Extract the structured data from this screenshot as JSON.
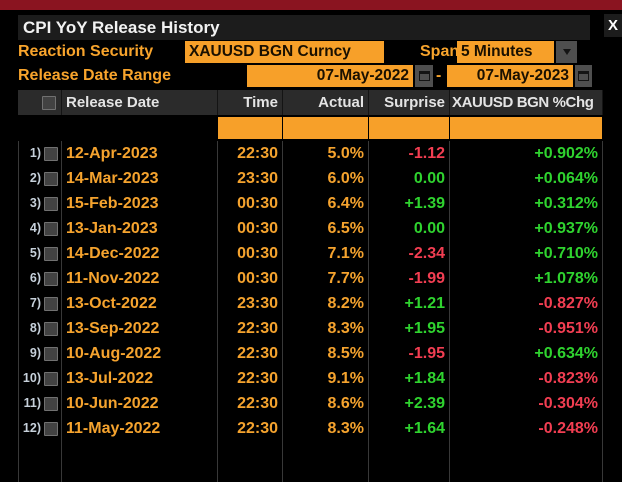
{
  "window": {
    "title": "CPI YoY Release History",
    "close_label": "X"
  },
  "controls": {
    "reaction_security_label": "Reaction Security",
    "reaction_security_value": "XAUUSD BGN Curncy",
    "span_label": "Span",
    "span_value": "5 Minutes",
    "date_range_label": "Release Date Range",
    "date_from": "07-May-2022",
    "date_separator": "-",
    "date_to": "07-May-2023"
  },
  "table": {
    "columns": [
      "Release Date",
      "Time",
      "Actual",
      "Surprise",
      "XAUUSD BGN %Chg"
    ],
    "rows": [
      {
        "num": "1)",
        "date": "12-Apr-2023",
        "time": "22:30",
        "actual": "5.0%",
        "surprise": "-1.12",
        "chg": "+0.902%"
      },
      {
        "num": "2)",
        "date": "14-Mar-2023",
        "time": "23:30",
        "actual": "6.0%",
        "surprise": "0.00",
        "chg": "+0.064%"
      },
      {
        "num": "3)",
        "date": "15-Feb-2023",
        "time": "00:30",
        "actual": "6.4%",
        "surprise": "+1.39",
        "chg": "+0.312%"
      },
      {
        "num": "4)",
        "date": "13-Jan-2023",
        "time": "00:30",
        "actual": "6.5%",
        "surprise": "0.00",
        "chg": "+0.937%"
      },
      {
        "num": "5)",
        "date": "14-Dec-2022",
        "time": "00:30",
        "actual": "7.1%",
        "surprise": "-2.34",
        "chg": "+0.710%"
      },
      {
        "num": "6)",
        "date": "11-Nov-2022",
        "time": "00:30",
        "actual": "7.7%",
        "surprise": "-1.99",
        "chg": "+1.078%"
      },
      {
        "num": "7)",
        "date": "13-Oct-2022",
        "time": "23:30",
        "actual": "8.2%",
        "surprise": "+1.21",
        "chg": "-0.827%"
      },
      {
        "num": "8)",
        "date": "13-Sep-2022",
        "time": "22:30",
        "actual": "8.3%",
        "surprise": "+1.95",
        "chg": "-0.951%"
      },
      {
        "num": "9)",
        "date": "10-Aug-2022",
        "time": "22:30",
        "actual": "8.5%",
        "surprise": "-1.95",
        "chg": "+0.634%"
      },
      {
        "num": "10)",
        "date": "13-Jul-2022",
        "time": "22:30",
        "actual": "9.1%",
        "surprise": "+1.84",
        "chg": "-0.823%"
      },
      {
        "num": "11)",
        "date": "10-Jun-2022",
        "time": "22:30",
        "actual": "8.6%",
        "surprise": "+2.39",
        "chg": "-0.304%"
      },
      {
        "num": "12)",
        "date": "11-May-2022",
        "time": "22:30",
        "actual": "8.3%",
        "surprise": "+1.64",
        "chg": "-0.248%"
      }
    ]
  },
  "colors": {
    "accent_amber": "#f7a029",
    "positive_green": "#2fd32f",
    "negative_red": "#f23e52",
    "top_bar_red": "#8a1420",
    "header_gray": "#2b2b2b",
    "background": "#000000"
  }
}
